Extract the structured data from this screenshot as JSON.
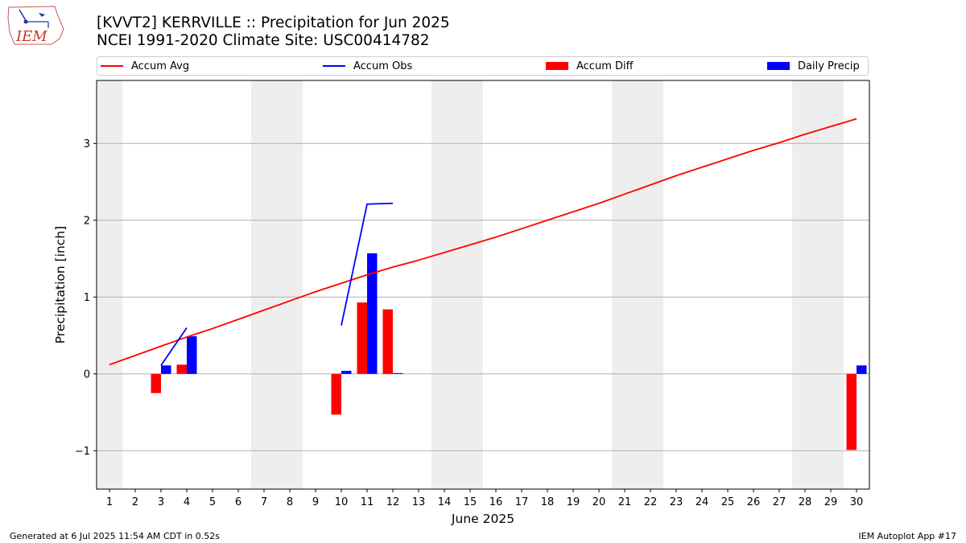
{
  "header": {
    "title": "[KVVT2] KERRVILLE :: Precipitation for Jun 2025",
    "subtitle": "NCEI 1991-2020 Climate Site: USC00414782"
  },
  "logo": {
    "text": "IEM",
    "icon": "iowa-state-weather-logo"
  },
  "legend": {
    "items": [
      {
        "label": "Accum Avg",
        "kind": "line",
        "color": "#ff0000"
      },
      {
        "label": "Accum Obs",
        "kind": "line",
        "color": "#0000ff"
      },
      {
        "label": "Accum Diff",
        "kind": "bar",
        "color": "#ff0000"
      },
      {
        "label": "Daily Precip",
        "kind": "bar",
        "color": "#0000ff"
      }
    ]
  },
  "footer": {
    "left": "Generated at 6 Jul 2025 11:54 AM CDT in 0.52s",
    "right": "IEM Autoplot App #17"
  },
  "chart_data": {
    "type": "bar",
    "xlabel": "June 2025",
    "ylabel": "Precipitation [inch]",
    "x": [
      1,
      2,
      3,
      4,
      5,
      6,
      7,
      8,
      9,
      10,
      11,
      12,
      13,
      14,
      15,
      16,
      17,
      18,
      19,
      20,
      21,
      22,
      23,
      24,
      25,
      26,
      27,
      28,
      29,
      30
    ],
    "xlim": [
      0.5,
      30.5
    ],
    "ylim": [
      -1.5,
      3.82
    ],
    "yticks": [
      -1,
      0,
      1,
      2,
      3
    ],
    "grid": true,
    "legend_position": "top",
    "weekend_shading": [
      [
        0.5,
        1.5
      ],
      [
        6.5,
        8.5
      ],
      [
        13.5,
        15.5
      ],
      [
        20.5,
        22.5
      ],
      [
        27.5,
        29.5
      ]
    ],
    "series": [
      {
        "name": "Accum Avg",
        "type": "line",
        "color": "#ff0000",
        "x": [
          1,
          2,
          3,
          4,
          5,
          6,
          7,
          8,
          9,
          10,
          11,
          12,
          13,
          14,
          15,
          16,
          17,
          18,
          19,
          20,
          21,
          22,
          23,
          24,
          25,
          26,
          27,
          28,
          29,
          30
        ],
        "values": [
          0.12,
          0.24,
          0.36,
          0.48,
          0.59,
          0.71,
          0.83,
          0.95,
          1.07,
          1.18,
          1.29,
          1.39,
          1.48,
          1.58,
          1.68,
          1.78,
          1.89,
          2.0,
          2.11,
          2.22,
          2.34,
          2.46,
          2.58,
          2.69,
          2.8,
          2.91,
          3.01,
          3.12,
          3.22,
          3.32
        ]
      },
      {
        "name": "Accum Obs",
        "type": "line",
        "color": "#0000ff",
        "segments": [
          {
            "x": [
              3,
              4
            ],
            "values": [
              0.11,
              0.6
            ]
          },
          {
            "x": [
              10,
              11,
              12
            ],
            "values": [
              0.63,
              2.21,
              2.22
            ]
          }
        ]
      },
      {
        "name": "Accum Diff",
        "type": "bar",
        "color": "#ff0000",
        "x": [
          3,
          4,
          10,
          11,
          12,
          30
        ],
        "values": [
          -0.25,
          0.12,
          -0.53,
          0.93,
          0.84,
          -0.99
        ]
      },
      {
        "name": "Daily Precip",
        "type": "bar",
        "color": "#0000ff",
        "x": [
          3,
          4,
          10,
          11,
          12,
          30
        ],
        "values": [
          0.11,
          0.49,
          0.04,
          1.57,
          0.01,
          0.11
        ]
      }
    ]
  }
}
